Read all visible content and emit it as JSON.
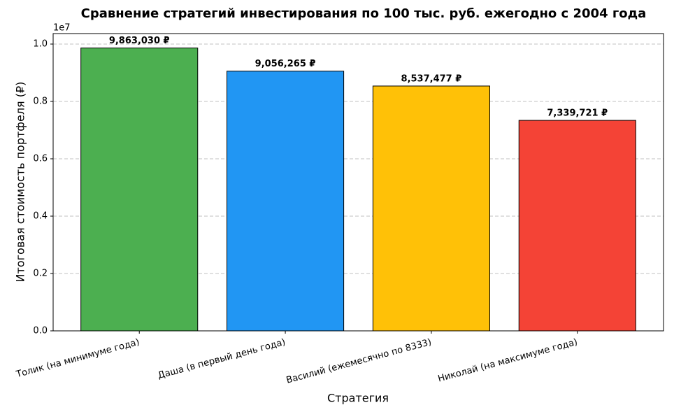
{
  "chart_data": {
    "type": "bar",
    "title": "Сравнение стратегий инвестирования по 100 тыс. руб. ежегодно с 2004 года",
    "xlabel": "Стратегия",
    "ylabel": "Итоговая стоимость портфеля (₽)",
    "y_offset_label": "1e7",
    "categories": [
      "Толик (на минимуме года)",
      "Даша (в первый день года)",
      "Василий (ежемесячно по 8333)",
      "Николай (на максимуме года)"
    ],
    "values": [
      9863030,
      9056265,
      8537477,
      7339721
    ],
    "value_labels": [
      "9,863,030 ₽",
      "9,056,265 ₽",
      "8,537,477 ₽",
      "7,339,721 ₽"
    ],
    "colors": [
      "#4caf50",
      "#2196f3",
      "#ffc107",
      "#f44336"
    ],
    "ylim": [
      0,
      10366000
    ],
    "yticks": [
      {
        "value": 0,
        "label": "0.0"
      },
      {
        "value": 2000000,
        "label": "0.2"
      },
      {
        "value": 4000000,
        "label": "0.4"
      },
      {
        "value": 6000000,
        "label": "0.6"
      },
      {
        "value": 8000000,
        "label": "0.8"
      },
      {
        "value": 10000000,
        "label": "1.0"
      }
    ],
    "grid": true
  }
}
